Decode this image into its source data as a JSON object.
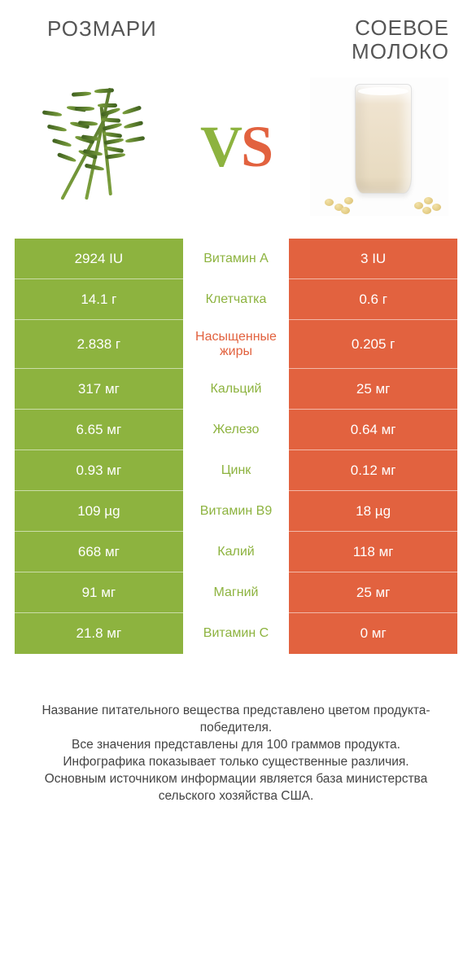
{
  "header": {
    "left_title": "РОЗМАРИ",
    "right_title": "СОЕВОЕ МОЛОКО",
    "vs_v": "V",
    "vs_s": "S"
  },
  "colors": {
    "left_bg": "#8db33f",
    "right_bg": "#e2623f",
    "mid_green": "#8db33f",
    "mid_orange": "#e2623f"
  },
  "rows": [
    {
      "left": "2924 IU",
      "label": "Витамин A",
      "right": "3 IU",
      "label_side": "green"
    },
    {
      "left": "14.1 г",
      "label": "Клетчатка",
      "right": "0.6 г",
      "label_side": "green"
    },
    {
      "left": "2.838 г",
      "label": "Насыщенные жиры",
      "right": "0.205 г",
      "label_side": "orange"
    },
    {
      "left": "317 мг",
      "label": "Кальций",
      "right": "25 мг",
      "label_side": "green"
    },
    {
      "left": "6.65 мг",
      "label": "Железо",
      "right": "0.64 мг",
      "label_side": "green"
    },
    {
      "left": "0.93 мг",
      "label": "Цинк",
      "right": "0.12 мг",
      "label_side": "green"
    },
    {
      "left": "109 µg",
      "label": "Витамин B9",
      "right": "18 µg",
      "label_side": "green"
    },
    {
      "left": "668 мг",
      "label": "Калий",
      "right": "118 мг",
      "label_side": "green"
    },
    {
      "left": "91 мг",
      "label": "Магний",
      "right": "25 мг",
      "label_side": "green"
    },
    {
      "left": "21.8 мг",
      "label": "Витамин C",
      "right": "0 мг",
      "label_side": "green"
    }
  ],
  "footnote": "Название питательного вещества представлено цветом продукта-победителя.\nВсе значения представлены для 100 граммов продукта.\nИнфографика показывает только существенные различия.\nОсновным источником информации является база министерства сельского хозяйства США."
}
